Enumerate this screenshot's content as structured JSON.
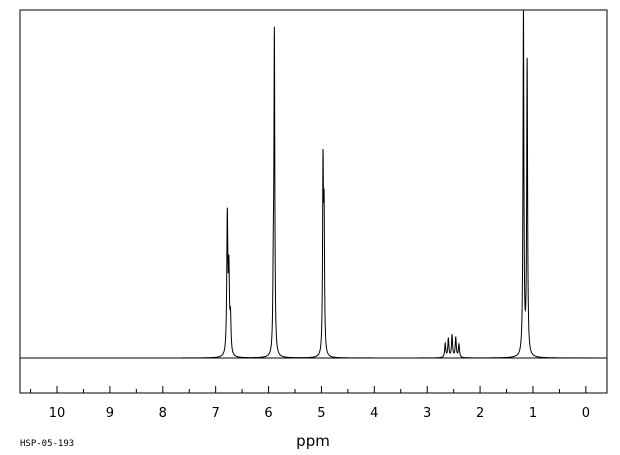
{
  "chart_data": {
    "type": "line",
    "title": "",
    "xlabel": "ppm",
    "ylabel": "",
    "sample_code": "HSP-05-193",
    "xlim": [
      10.7,
      -0.4
    ],
    "ylim": [
      0,
      1.0
    ],
    "x_reversed": true,
    "grid": false,
    "x_ticks": [
      10,
      9,
      8,
      7,
      6,
      5,
      4,
      3,
      2,
      1,
      0
    ],
    "x_minor_step": 0.5,
    "baseline_range": [
      8.1,
      0.4
    ],
    "series": [
      {
        "peaks": [
          {
            "ppm": 6.78,
            "height": 0.4,
            "width": 0.012
          },
          {
            "ppm": 6.75,
            "height": 0.23,
            "width": 0.012
          },
          {
            "ppm": 6.72,
            "height": 0.1,
            "width": 0.012
          },
          {
            "ppm": 5.89,
            "height": 0.92,
            "width": 0.01
          },
          {
            "ppm": 5.91,
            "height": 0.2,
            "width": 0.01
          },
          {
            "ppm": 4.97,
            "height": 0.53,
            "width": 0.01
          },
          {
            "ppm": 4.95,
            "height": 0.38,
            "width": 0.01
          },
          {
            "ppm": 2.66,
            "height": 0.04,
            "width": 0.012
          },
          {
            "ppm": 2.6,
            "height": 0.055,
            "width": 0.012
          },
          {
            "ppm": 2.53,
            "height": 0.065,
            "width": 0.012
          },
          {
            "ppm": 2.46,
            "height": 0.058,
            "width": 0.012
          },
          {
            "ppm": 2.4,
            "height": 0.038,
            "width": 0.012
          },
          {
            "ppm": 1.18,
            "height": 0.99,
            "width": 0.01
          },
          {
            "ppm": 1.11,
            "height": 0.85,
            "width": 0.01
          }
        ]
      }
    ]
  }
}
